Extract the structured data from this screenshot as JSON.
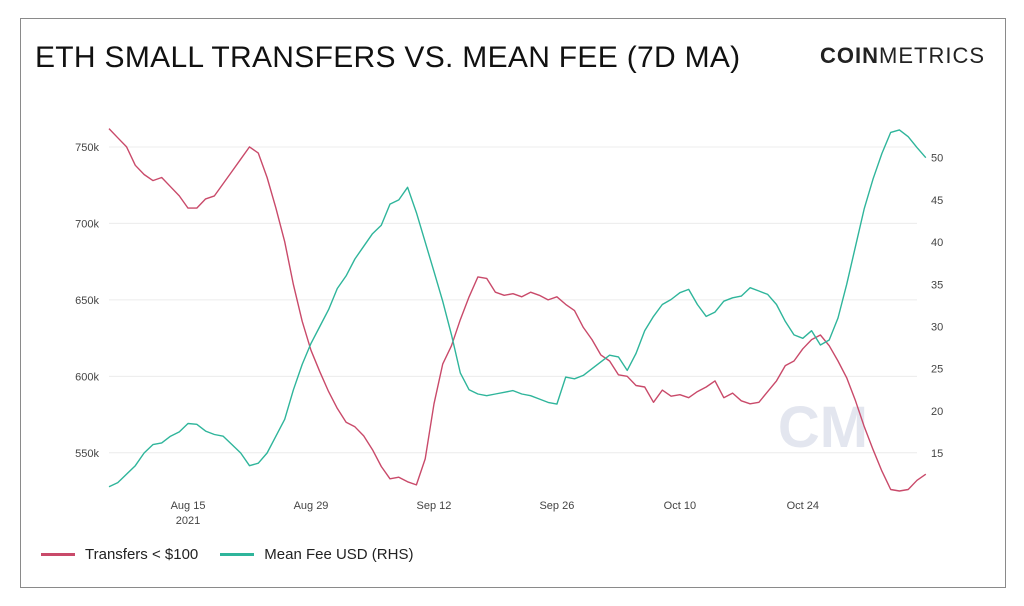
{
  "title": "ETH SMALL TRANSFERS VS. MEAN FEE (7D MA)",
  "brand": {
    "bold": "COIN",
    "light": "METRICS",
    "watermark": "CM"
  },
  "colors": {
    "transfers": "#c94a6a",
    "fee": "#2fb59b",
    "grid": "#ececec",
    "tick": "#444444"
  },
  "chart_data": {
    "type": "line",
    "x_ticks": [
      {
        "label": "Aug 15",
        "sublabel": "2021",
        "day": 9
      },
      {
        "label": "Aug 29",
        "day": 23
      },
      {
        "label": "Sep 12",
        "day": 37
      },
      {
        "label": "Sep 26",
        "day": 51
      },
      {
        "label": "Oct 10",
        "day": 65
      },
      {
        "label": "Oct 24",
        "day": 79
      }
    ],
    "x_range": [
      0,
      92
    ],
    "y_left": {
      "ticks": [
        "550k",
        "600k",
        "650k",
        "700k",
        "750k"
      ],
      "values": [
        550000,
        600000,
        650000,
        700000,
        750000
      ],
      "range": [
        525000,
        765000
      ]
    },
    "y_right": {
      "ticks": [
        "15",
        "20",
        "25",
        "30",
        "35",
        "40",
        "45",
        "50"
      ],
      "values": [
        15,
        20,
        25,
        30,
        35,
        40,
        45,
        50
      ],
      "range": [
        10.5,
        54
      ]
    },
    "legend_position": "bottom-left",
    "series": [
      {
        "name": "Transfers < $100",
        "axis": "left",
        "color": "#c94a6a",
        "values": [
          762000,
          756000,
          750000,
          738000,
          732000,
          728000,
          730000,
          724000,
          718000,
          710000,
          710000,
          716000,
          718000,
          726000,
          734000,
          742000,
          750000,
          746000,
          730000,
          710000,
          688000,
          660000,
          636000,
          617000,
          603000,
          590000,
          579000,
          570000,
          567000,
          561000,
          552000,
          541000,
          533000,
          534000,
          531000,
          529000,
          546000,
          582000,
          608000,
          620000,
          637000,
          652000,
          665000,
          664000,
          655000,
          653000,
          654000,
          652000,
          655000,
          653000,
          650000,
          652000,
          647000,
          643000,
          632000,
          624000,
          614000,
          610000,
          601000,
          600000,
          594000,
          593000,
          583000,
          591000,
          587000,
          588000,
          586000,
          590000,
          593000,
          597000,
          586000,
          589000,
          584000,
          582000,
          583000,
          590000,
          597000,
          607000,
          610000,
          618000,
          624000,
          627000,
          620000,
          610000,
          599000,
          584000,
          567000,
          552000,
          538000,
          526000,
          525000,
          526000,
          532000,
          536000
        ]
      },
      {
        "name": "Mean Fee USD (RHS)",
        "axis": "right",
        "color": "#2fb59b",
        "values": [
          11.0,
          11.5,
          12.5,
          13.5,
          15.0,
          16.0,
          16.2,
          17.0,
          17.5,
          18.5,
          18.4,
          17.6,
          17.2,
          17.0,
          16.0,
          15.0,
          13.5,
          13.8,
          15.0,
          17.0,
          19.0,
          22.5,
          25.5,
          28.0,
          30.0,
          32.0,
          34.5,
          36.0,
          38.0,
          39.5,
          41.0,
          42.0,
          44.5,
          45.0,
          46.5,
          43.5,
          40.0,
          36.5,
          33.0,
          29.0,
          24.5,
          22.5,
          22.0,
          21.8,
          22.0,
          22.2,
          22.4,
          22.0,
          21.8,
          21.4,
          21.0,
          20.8,
          24.0,
          23.8,
          24.2,
          25.0,
          25.8,
          26.6,
          26.4,
          24.8,
          26.8,
          29.5,
          31.2,
          32.6,
          33.2,
          34.0,
          34.4,
          32.6,
          31.2,
          31.7,
          33.0,
          33.4,
          33.6,
          34.6,
          34.2,
          33.8,
          32.6,
          30.6,
          29.0,
          28.6,
          29.5,
          27.8,
          28.4,
          31.0,
          35.0,
          39.5,
          44.0,
          47.5,
          50.5,
          53.0,
          53.3,
          52.5,
          51.2,
          50.0
        ]
      }
    ]
  }
}
